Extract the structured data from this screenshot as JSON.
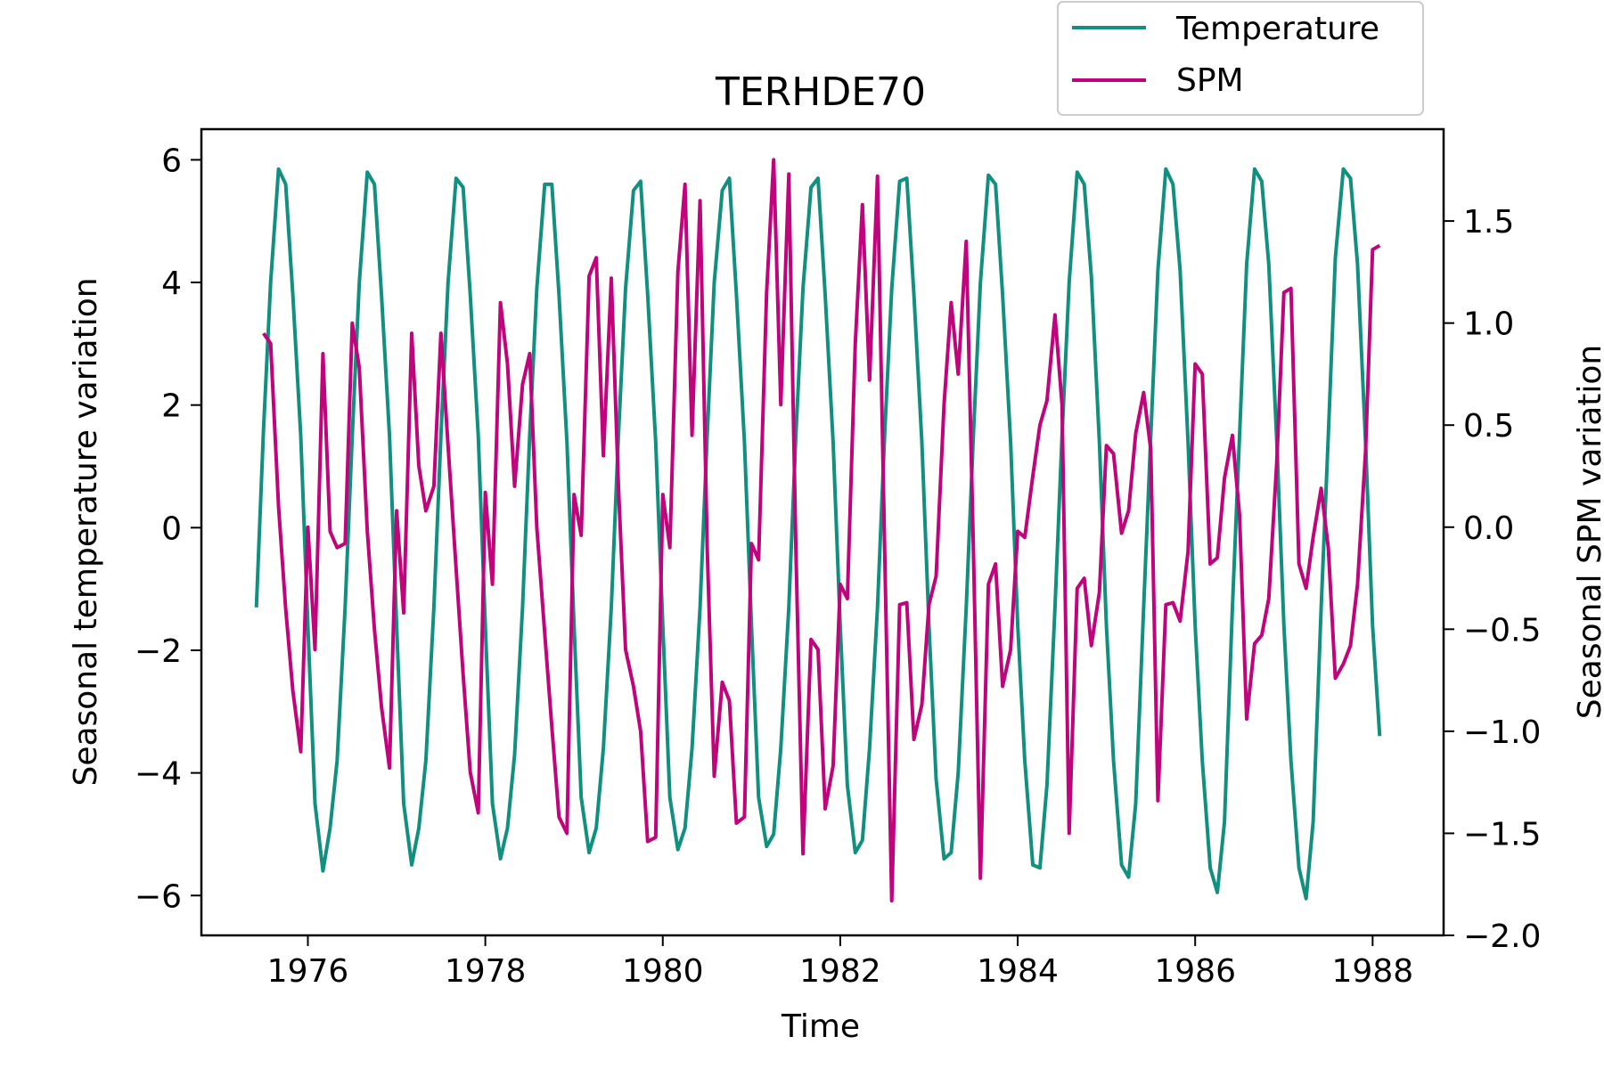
{
  "chart_data": {
    "type": "line",
    "title": "TERHDE70",
    "xlabel": "Time",
    "ylabel_left": "Seasonal temperature variation",
    "ylabel_right": "Seasonal SPM variation",
    "xlim": [
      1974.8,
      1988.8
    ],
    "ylim_left": [
      -6.65,
      6.5
    ],
    "ylim_right": [
      -2.0,
      1.95
    ],
    "xticks": [
      1976,
      1978,
      1980,
      1982,
      1984,
      1986,
      1988
    ],
    "xtick_labels": [
      "1976",
      "1978",
      "1980",
      "1982",
      "1984",
      "1986",
      "1988"
    ],
    "yticks_left": [
      -6,
      -4,
      -2,
      0,
      2,
      4,
      6
    ],
    "yticks_left_labels": [
      "−6",
      "−4",
      "−2",
      "0",
      "2",
      "4",
      "6"
    ],
    "yticks_right": [
      -2.0,
      -1.5,
      -1.0,
      -0.5,
      0.0,
      0.5,
      1.0,
      1.5
    ],
    "yticks_right_labels": [
      "−2.0",
      "−1.5",
      "−1.0",
      "−0.5",
      "0.0",
      "0.5",
      "1.0",
      "1.5"
    ],
    "legend": {
      "placement": "top-right, above plot"
    },
    "grid": false,
    "series": [
      {
        "name": "Temperature",
        "axis": "left",
        "color": "#12907f",
        "x": [
          1975.42,
          1975.5,
          1975.58,
          1975.67,
          1975.75,
          1975.83,
          1975.92,
          1976.0,
          1976.08,
          1976.17,
          1976.25,
          1976.33,
          1976.42,
          1976.5,
          1976.58,
          1976.67,
          1976.75,
          1976.83,
          1976.92,
          1977.0,
          1977.08,
          1977.17,
          1977.25,
          1977.33,
          1977.42,
          1977.5,
          1977.58,
          1977.67,
          1977.75,
          1977.83,
          1977.92,
          1978.0,
          1978.08,
          1978.17,
          1978.25,
          1978.33,
          1978.42,
          1978.5,
          1978.58,
          1978.67,
          1978.75,
          1978.83,
          1978.92,
          1979.0,
          1979.08,
          1979.17,
          1979.25,
          1979.33,
          1979.42,
          1979.5,
          1979.58,
          1979.67,
          1979.75,
          1979.83,
          1979.92,
          1980.0,
          1980.08,
          1980.17,
          1980.25,
          1980.33,
          1980.42,
          1980.5,
          1980.58,
          1980.67,
          1980.75,
          1980.83,
          1980.92,
          1981.0,
          1981.08,
          1981.17,
          1981.25,
          1981.33,
          1981.42,
          1981.5,
          1981.58,
          1981.67,
          1981.75,
          1981.83,
          1981.92,
          1982.0,
          1982.08,
          1982.17,
          1982.25,
          1982.33,
          1982.42,
          1982.5,
          1982.58,
          1982.67,
          1982.75,
          1982.83,
          1982.92,
          1983.0,
          1983.08,
          1983.17,
          1983.25,
          1983.33,
          1983.42,
          1983.5,
          1983.58,
          1983.67,
          1983.75,
          1983.83,
          1983.92,
          1984.0,
          1984.08,
          1984.17,
          1984.25,
          1984.33,
          1984.42,
          1984.5,
          1984.58,
          1984.67,
          1984.75,
          1984.83,
          1984.92,
          1985.0,
          1985.08,
          1985.17,
          1985.25,
          1985.33,
          1985.42,
          1985.5,
          1985.58,
          1985.67,
          1985.75,
          1985.83,
          1985.92,
          1986.0,
          1986.08,
          1986.17,
          1986.25,
          1986.33,
          1986.42,
          1986.5,
          1986.58,
          1986.67,
          1986.75,
          1986.83,
          1986.92,
          1987.0,
          1987.08,
          1987.17,
          1987.25,
          1987.33,
          1987.42,
          1987.5,
          1987.58,
          1987.67,
          1987.75,
          1987.83,
          1987.92,
          1988.0,
          1988.08
        ],
        "y": [
          -1.3,
          1.6,
          4.0,
          5.85,
          5.6,
          3.8,
          1.5,
          -1.6,
          -4.5,
          -5.6,
          -4.9,
          -3.8,
          -1.3,
          1.5,
          4.0,
          5.8,
          5.6,
          3.8,
          1.5,
          -1.6,
          -4.5,
          -5.5,
          -4.9,
          -3.8,
          -1.3,
          1.5,
          4.0,
          5.7,
          5.55,
          3.8,
          1.5,
          -1.6,
          -4.5,
          -5.4,
          -4.9,
          -3.7,
          -1.3,
          1.5,
          3.9,
          5.6,
          5.6,
          3.8,
          1.4,
          -1.6,
          -4.4,
          -5.3,
          -4.9,
          -3.6,
          -1.3,
          1.5,
          3.9,
          5.5,
          5.65,
          3.8,
          1.4,
          -1.6,
          -4.4,
          -5.25,
          -4.9,
          -3.6,
          -1.3,
          1.5,
          4.0,
          5.5,
          5.7,
          3.8,
          1.4,
          -1.6,
          -4.4,
          -5.2,
          -5.0,
          -3.6,
          -1.3,
          1.5,
          3.9,
          5.55,
          5.7,
          3.8,
          1.4,
          -1.6,
          -4.2,
          -5.3,
          -5.1,
          -3.6,
          -1.3,
          1.5,
          3.9,
          5.65,
          5.7,
          3.8,
          1.4,
          -1.6,
          -4.1,
          -5.4,
          -5.3,
          -4.0,
          -1.3,
          1.5,
          4.0,
          5.75,
          5.6,
          3.8,
          1.4,
          -1.6,
          -3.8,
          -5.5,
          -5.55,
          -4.2,
          -1.3,
          1.5,
          4.0,
          5.8,
          5.6,
          4.1,
          1.4,
          -1.6,
          -3.8,
          -5.5,
          -5.7,
          -4.5,
          -1.3,
          1.5,
          4.2,
          5.85,
          5.6,
          4.2,
          1.4,
          -1.6,
          -3.8,
          -5.55,
          -5.95,
          -4.8,
          -1.3,
          1.5,
          4.3,
          5.85,
          5.65,
          4.3,
          1.4,
          -1.6,
          -3.8,
          -5.55,
          -6.05,
          -4.8,
          -1.3,
          1.5,
          4.4,
          5.85,
          5.7,
          4.3,
          1.4,
          -1.6,
          -3.4
        ]
      },
      {
        "name": "SPM",
        "axis": "right",
        "color": "#c0047c",
        "x": [
          1975.5,
          1975.58,
          1975.67,
          1975.75,
          1975.83,
          1975.92,
          1976.0,
          1976.08,
          1976.17,
          1976.25,
          1976.33,
          1976.42,
          1976.5,
          1976.58,
          1976.67,
          1976.75,
          1976.83,
          1976.92,
          1977.0,
          1977.08,
          1977.17,
          1977.25,
          1977.33,
          1977.42,
          1977.5,
          1977.58,
          1977.67,
          1977.75,
          1977.83,
          1977.92,
          1978.0,
          1978.08,
          1978.17,
          1978.25,
          1978.33,
          1978.42,
          1978.5,
          1978.58,
          1978.67,
          1978.75,
          1978.83,
          1978.92,
          1979.0,
          1979.08,
          1979.17,
          1979.25,
          1979.33,
          1979.42,
          1979.5,
          1979.58,
          1979.67,
          1979.75,
          1979.83,
          1979.92,
          1980.0,
          1980.08,
          1980.17,
          1980.25,
          1980.33,
          1980.42,
          1980.5,
          1980.58,
          1980.67,
          1980.75,
          1980.83,
          1980.92,
          1981.0,
          1981.08,
          1981.17,
          1981.25,
          1981.33,
          1981.42,
          1981.5,
          1981.58,
          1981.67,
          1981.75,
          1981.83,
          1981.92,
          1982.0,
          1982.08,
          1982.17,
          1982.25,
          1982.33,
          1982.42,
          1982.5,
          1982.58,
          1982.67,
          1982.75,
          1982.83,
          1982.92,
          1983.0,
          1983.08,
          1983.17,
          1983.25,
          1983.33,
          1983.42,
          1983.5,
          1983.58,
          1983.67,
          1983.75,
          1983.83,
          1983.92,
          1984.0,
          1984.08,
          1984.17,
          1984.25,
          1984.33,
          1984.42,
          1984.5,
          1984.58,
          1984.67,
          1984.75,
          1984.83,
          1984.92,
          1985.0,
          1985.08,
          1985.17,
          1985.25,
          1985.33,
          1985.42,
          1985.5,
          1985.58,
          1985.67,
          1985.75,
          1985.83,
          1985.92,
          1986.0,
          1986.08,
          1986.17,
          1986.25,
          1986.33,
          1986.42,
          1986.5,
          1986.58,
          1986.67,
          1986.75,
          1986.83,
          1986.92,
          1987.0,
          1987.08,
          1987.17,
          1987.25,
          1987.33,
          1987.42,
          1987.5,
          1987.58,
          1987.67,
          1987.75,
          1987.83,
          1987.92,
          1988.0,
          1988.08
        ],
        "y": [
          0.95,
          0.9,
          0.1,
          -0.4,
          -0.8,
          -1.1,
          0.0,
          -0.6,
          0.85,
          -0.02,
          -0.1,
          -0.08,
          1.0,
          0.78,
          -0.02,
          -0.5,
          -0.88,
          -1.18,
          0.08,
          -0.42,
          0.95,
          0.3,
          0.08,
          0.2,
          0.95,
          0.4,
          -0.2,
          -0.72,
          -1.2,
          -1.4,
          0.17,
          -0.28,
          1.1,
          0.8,
          0.2,
          0.7,
          0.85,
          0.0,
          -0.52,
          -0.98,
          -1.42,
          -1.5,
          0.16,
          -0.04,
          1.23,
          1.32,
          0.35,
          1.22,
          0.2,
          -0.6,
          -0.78,
          -1.0,
          -1.54,
          -1.52,
          0.16,
          -0.1,
          1.25,
          1.68,
          0.45,
          1.6,
          -0.1,
          -1.22,
          -0.76,
          -0.85,
          -1.45,
          -1.42,
          -0.08,
          -0.16,
          1.15,
          1.8,
          0.6,
          1.73,
          -0.1,
          -1.6,
          -0.55,
          -0.6,
          -1.38,
          -1.17,
          -0.28,
          -0.35,
          0.9,
          1.58,
          0.72,
          1.72,
          -0.1,
          -1.83,
          -0.38,
          -0.37,
          -1.04,
          -0.87,
          -0.38,
          -0.24,
          0.6,
          1.1,
          0.75,
          1.4,
          -0.1,
          -1.72,
          -0.28,
          -0.18,
          -0.78,
          -0.6,
          -0.02,
          -0.05,
          0.25,
          0.5,
          0.62,
          1.04,
          0.6,
          -1.5,
          -0.3,
          -0.25,
          -0.58,
          -0.32,
          0.4,
          0.36,
          -0.03,
          0.08,
          0.46,
          0.66,
          0.38,
          -1.34,
          -0.38,
          -0.37,
          -0.46,
          -0.12,
          0.8,
          0.75,
          -0.18,
          -0.15,
          0.24,
          0.45,
          0.06,
          -0.94,
          -0.57,
          -0.53,
          -0.35,
          0.32,
          1.15,
          1.17,
          -0.18,
          -0.3,
          -0.05,
          0.19,
          -0.1,
          -0.74,
          -0.67,
          -0.58,
          -0.28,
          0.37,
          1.36,
          1.38
        ]
      }
    ]
  }
}
